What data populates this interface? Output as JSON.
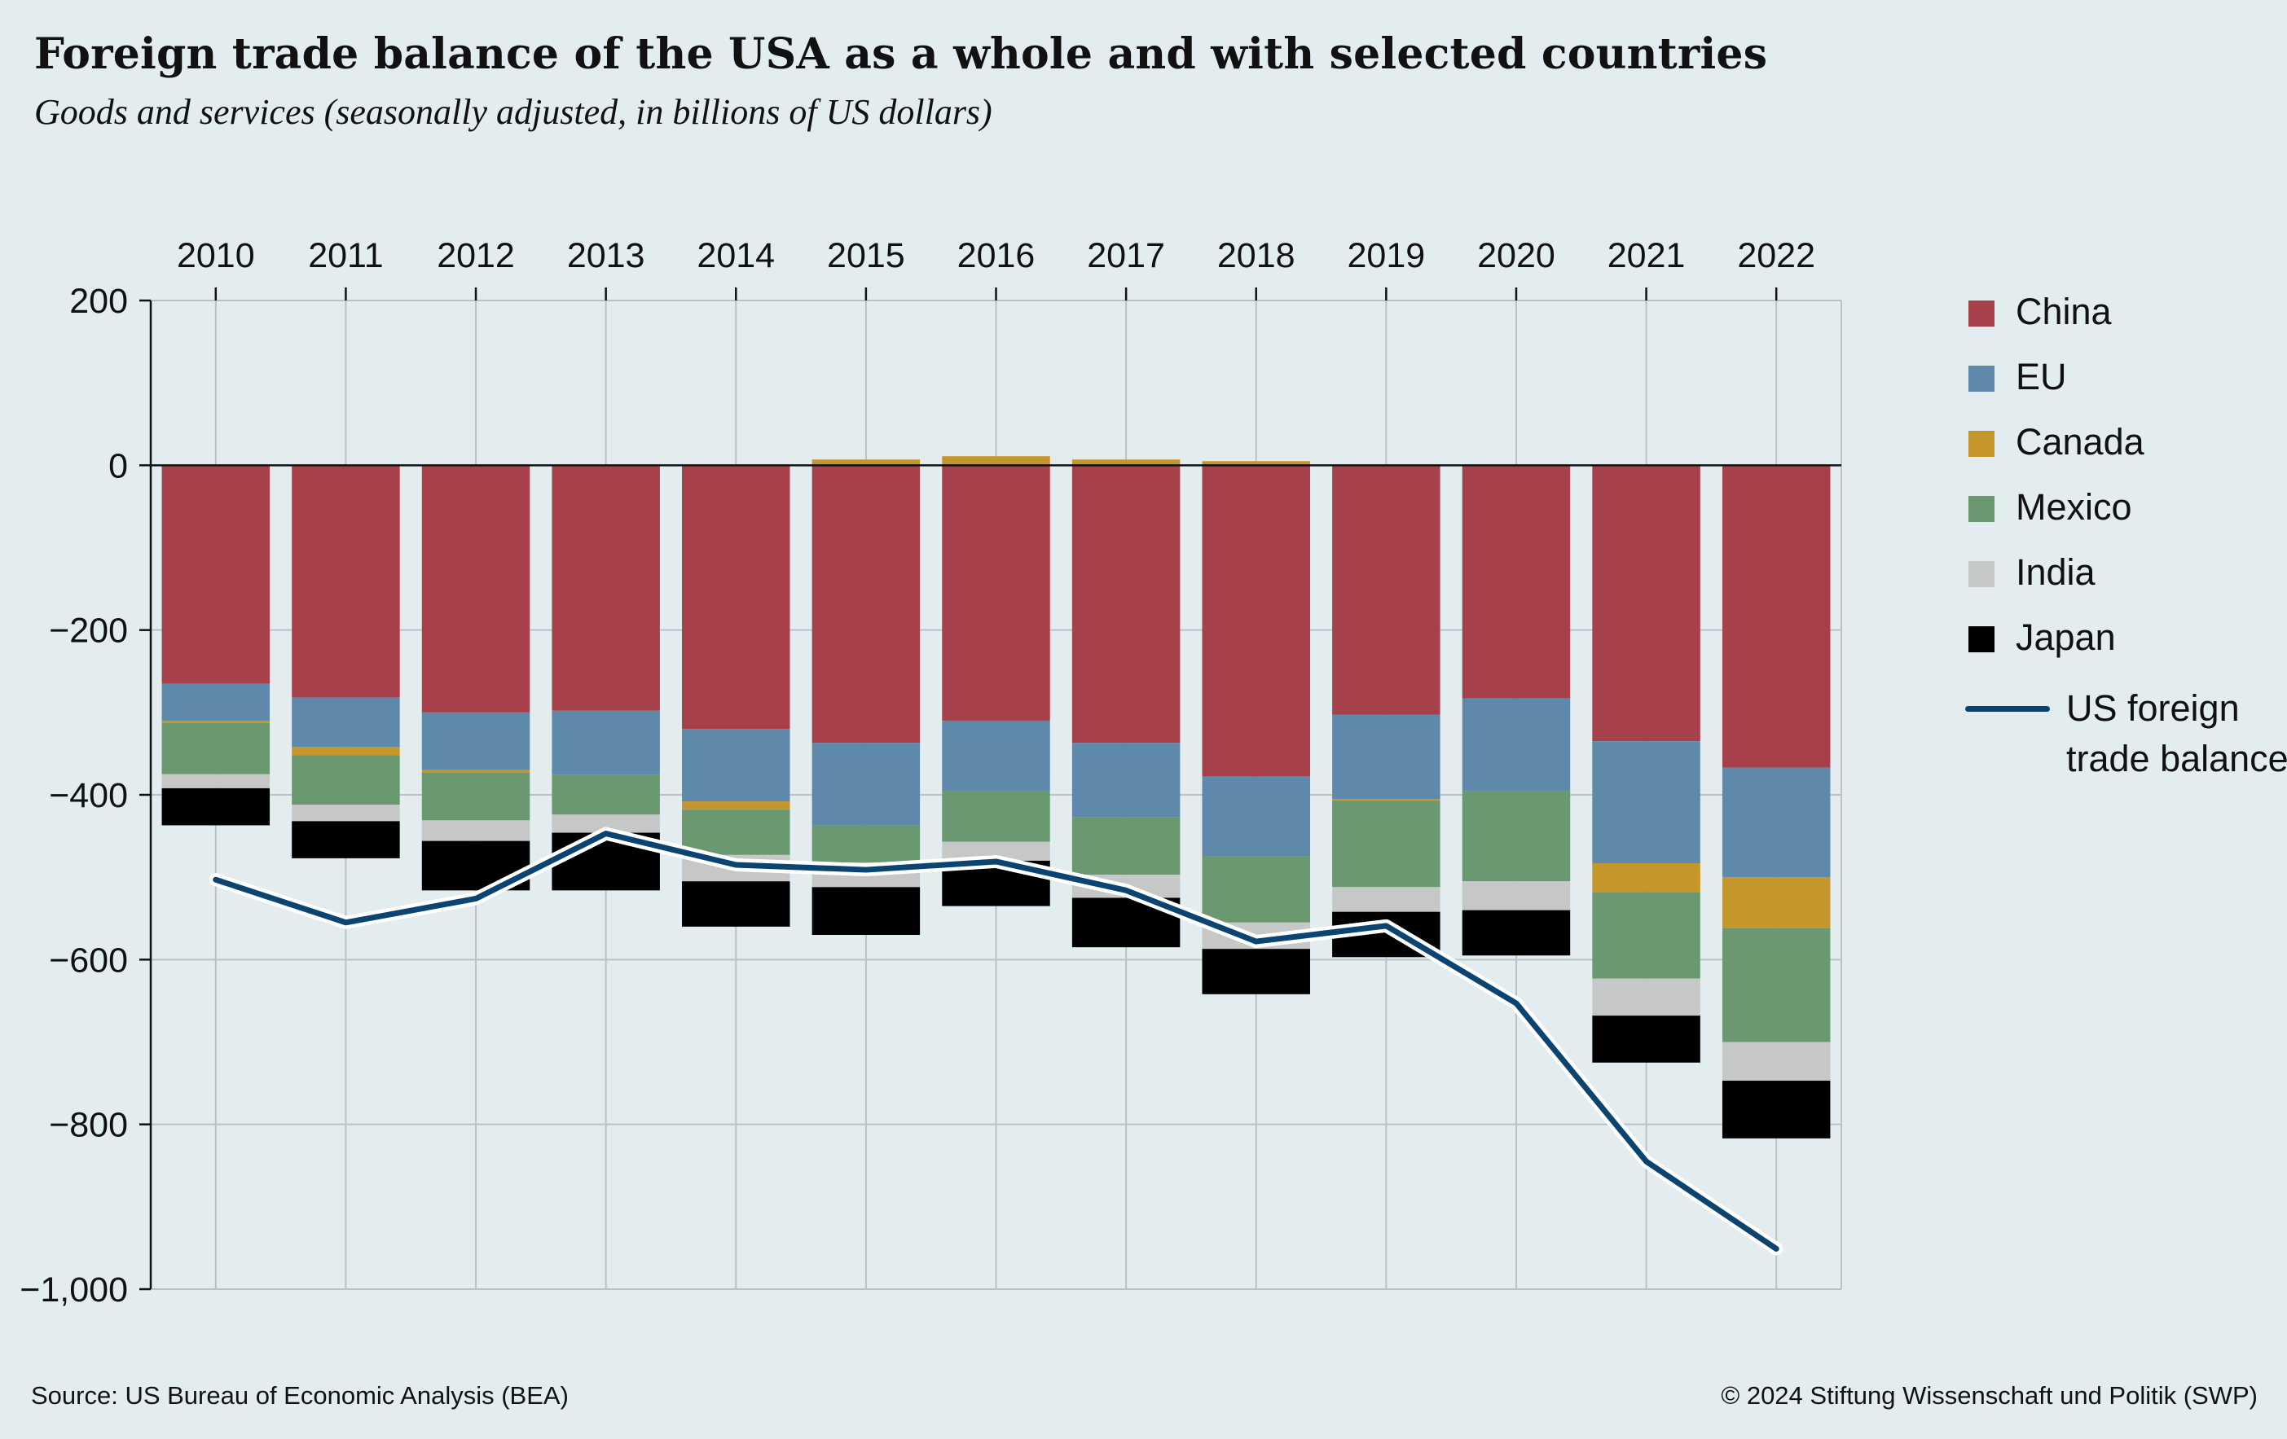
{
  "title": "Foreign trade balance of the USA as a whole and with selected countries",
  "subtitle": "Goods and services (seasonally adjusted, in billions of US dollars)",
  "source": "Source: US Bureau of Economic Analysis (BEA)",
  "copyright": "© 2024 Stiftung Wissenschaft und Politik (SWP)",
  "chart_data": {
    "type": "bar",
    "stacked": true,
    "categories": [
      "2010",
      "2011",
      "2012",
      "2013",
      "2014",
      "2015",
      "2016",
      "2017",
      "2018",
      "2019",
      "2020",
      "2021",
      "2022"
    ],
    "y_ticks": [
      200,
      0,
      -200,
      -400,
      -600,
      -800,
      -1000
    ],
    "y_tick_labels": [
      "200",
      "0",
      "−200",
      "−400",
      "−600",
      "−800",
      "−1,000"
    ],
    "ylim": [
      -1000,
      200
    ],
    "grid": true,
    "x_axis_position": "top",
    "legend_position": "right",
    "series": [
      {
        "name": "China",
        "color": "#a6404a",
        "values": [
          -265,
          -282,
          -300,
          -298,
          -320,
          -337,
          -310,
          -337,
          -378,
          -303,
          -283,
          -335,
          -367
        ]
      },
      {
        "name": "EU",
        "color": "#5e89aa",
        "values": [
          -45,
          -60,
          -70,
          -78,
          -88,
          -100,
          -85,
          -90,
          -97,
          -102,
          -112,
          -148,
          -133
        ]
      },
      {
        "name": "Canada",
        "color": "#c4962c",
        "values": [
          -3,
          -10,
          -3,
          0,
          -10,
          7,
          11,
          7,
          5,
          -2,
          0,
          -35,
          -62
        ]
      },
      {
        "name": "Mexico",
        "color": "#6a9870",
        "values": [
          -62,
          -60,
          -58,
          -48,
          -55,
          -45,
          -62,
          -70,
          -80,
          -105,
          -110,
          -105,
          -138
        ]
      },
      {
        "name": "India",
        "color": "#c6c8c8",
        "values": [
          -17,
          -20,
          -25,
          -22,
          -32,
          -30,
          -23,
          -28,
          -32,
          -30,
          -35,
          -45,
          -47
        ]
      },
      {
        "name": "Japan",
        "color": "#000000",
        "values": [
          -45,
          -45,
          -60,
          -70,
          -55,
          -58,
          -55,
          -60,
          -55,
          -55,
          -55,
          -57,
          -70
        ]
      }
    ],
    "line": {
      "name": "US foreign trade balance",
      "color": "#0b4471",
      "values": [
        -503,
        -555,
        -526,
        -447,
        -485,
        -491,
        -481,
        -516,
        -578,
        -559,
        -653,
        -845,
        -951
      ]
    }
  }
}
